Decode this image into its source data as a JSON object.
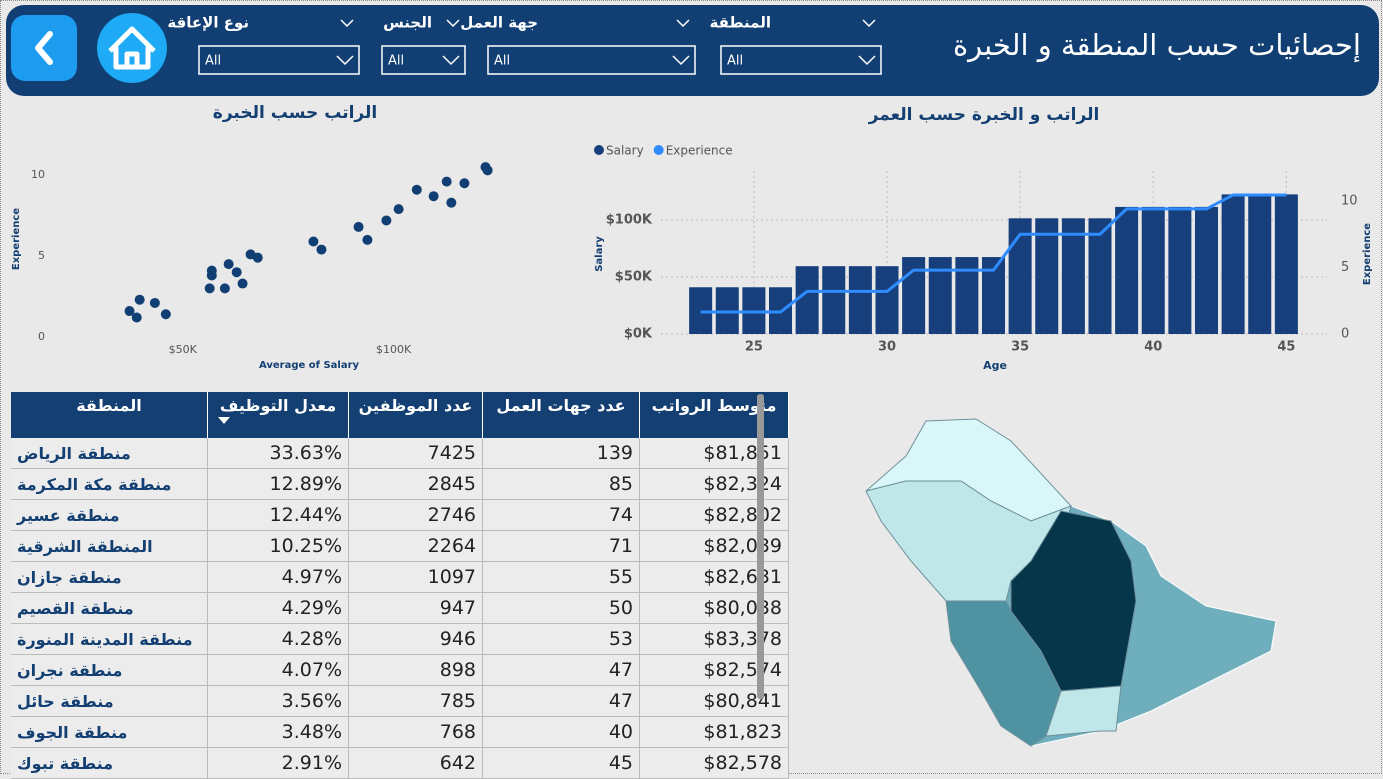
{
  "header": {
    "title": "إحصائيات حسب المنطقة و الخبرة"
  },
  "filters": [
    {
      "label": "المنطقة",
      "value": "All"
    },
    {
      "label": "جهة العمل",
      "value": "All"
    },
    {
      "label": "الجنس",
      "value": "All"
    },
    {
      "label": "نوع الإعاقة",
      "value": "All"
    }
  ],
  "chart_data": [
    {
      "type": "scatter",
      "title": "الراتب حسب الخبرة",
      "x_label": "Average of Salary",
      "y_label": "Experience",
      "color": "#123f73",
      "x": [
        37400,
        39100,
        39800,
        43400,
        46000,
        56400,
        56900,
        56900,
        60000,
        60900,
        62800,
        64200,
        66100,
        67800,
        81000,
        82900,
        91700,
        93800,
        98300,
        101200,
        105500,
        109500,
        112600,
        113700,
        116800,
        121800,
        122300
      ],
      "values": [
        1.6,
        1.2,
        2.3,
        2.1,
        1.4,
        3.0,
        3.8,
        4.1,
        3.0,
        4.5,
        4.0,
        3.3,
        5.1,
        4.9,
        5.9,
        5.4,
        6.8,
        6.0,
        7.2,
        7.9,
        9.1,
        8.7,
        9.6,
        8.3,
        9.5,
        10.5,
        10.3
      ],
      "xlim": [
        33000,
        125000
      ],
      "xticks": [
        {
          "value": 50000,
          "label": "$50K"
        },
        {
          "value": 100000,
          "label": "$100K"
        }
      ],
      "ylim": [
        -0.5,
        11
      ],
      "yticks": [
        0,
        5,
        10
      ],
      "grid": false
    },
    {
      "type": "bar_line",
      "title": "الراتب و الخبرة حسب العمر",
      "x_label": "Age",
      "y_label": "Salary",
      "y2_label": "Experience",
      "x": [
        23,
        24,
        25,
        26,
        27,
        28,
        29,
        30,
        31,
        32,
        33,
        34,
        35,
        36,
        37,
        38,
        39,
        40,
        41,
        42,
        43,
        44,
        45
      ],
      "series": [
        {
          "name": "Salary",
          "type": "bar",
          "color": "#173f7c",
          "values": [
            41000,
            41000,
            41000,
            41000,
            59500,
            59500,
            59500,
            59500,
            67500,
            67500,
            67500,
            67500,
            101500,
            101500,
            101500,
            101500,
            111500,
            111500,
            111500,
            111500,
            122500,
            122500,
            122500
          ]
        },
        {
          "name": "Experience",
          "type": "line",
          "axis": "y2",
          "color": "#2f8cff",
          "values": [
            1.65,
            1.65,
            1.65,
            1.65,
            3.2,
            3.2,
            3.2,
            3.2,
            4.8,
            4.8,
            4.8,
            4.8,
            7.5,
            7.5,
            7.5,
            7.5,
            9.4,
            9.4,
            9.4,
            9.4,
            10.45,
            10.45,
            10.45
          ]
        }
      ],
      "xlim": [
        22.3,
        45.7
      ],
      "xticks": [
        25,
        30,
        35,
        40,
        45
      ],
      "ylim": [
        0,
        143000
      ],
      "yticks": [
        {
          "value": 0,
          "label": "$0K"
        },
        {
          "value": 50000,
          "label": "$50K"
        },
        {
          "value": 100000,
          "label": "$100K"
        }
      ],
      "y2lim": [
        0,
        12.25
      ],
      "y2ticks": [
        0,
        5,
        10
      ],
      "grid": true
    }
  ],
  "table": {
    "columns": [
      "المنطقة",
      "معدل التوظيف",
      "عدد الموظفين",
      "عدد جهات العمل",
      "متوسط الرواتب"
    ],
    "rows": [
      [
        "منطقة الرياض",
        "33.63%",
        "7425",
        "139",
        "$81,851"
      ],
      [
        "منطقة مكة المكرمة",
        "12.89%",
        "2845",
        "85",
        "$82,324"
      ],
      [
        "منطقة عسير",
        "12.44%",
        "2746",
        "74",
        "$82,802"
      ],
      [
        "المنطقة الشرقية",
        "10.25%",
        "2264",
        "71",
        "$82,039"
      ],
      [
        "منطقة جازان",
        "4.97%",
        "1097",
        "55",
        "$82,631"
      ],
      [
        "منطقة القصيم",
        "4.29%",
        "947",
        "50",
        "$80,038"
      ],
      [
        "منطقة المدينة المنورة",
        "4.28%",
        "946",
        "53",
        "$83,378"
      ],
      [
        "منطقة نجران",
        "4.07%",
        "898",
        "47",
        "$82,574"
      ],
      [
        "منطقة حائل",
        "3.56%",
        "785",
        "47",
        "$80,841"
      ],
      [
        "منطقة الجوف",
        "3.48%",
        "768",
        "40",
        "$81,823"
      ],
      [
        "منطقة تبوك",
        "2.91%",
        "642",
        "45",
        "$82,578"
      ]
    ]
  }
}
